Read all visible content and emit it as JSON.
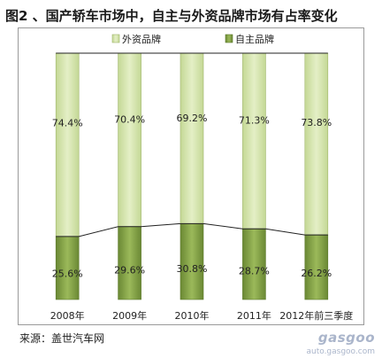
{
  "title": "图2 、国产轿车市场中，自主与外资品牌市场有占率变化",
  "source": "来源：盖世汽车网",
  "watermark": {
    "brand": "gasgoo",
    "url": "auto.gasgoo.com"
  },
  "chart_data": {
    "type": "bar",
    "stacked": true,
    "categories": [
      "2008年",
      "2009年",
      "2010年",
      "2011年",
      "2012年前三季度"
    ],
    "series": [
      {
        "name": "自主品牌",
        "values": [
          25.6,
          29.6,
          30.8,
          28.7,
          26.2
        ],
        "labels": [
          "25.6%",
          "29.6%",
          "30.8%",
          "28.7%",
          "26.2%"
        ],
        "color": "#7a9a3e"
      },
      {
        "name": "外资品牌",
        "values": [
          74.4,
          70.4,
          69.2,
          71.3,
          73.8
        ],
        "labels": [
          "74.4%",
          "70.4%",
          "69.2%",
          "71.3%",
          "73.8%"
        ],
        "color": "#d3e3a9"
      }
    ],
    "ylim": [
      0,
      100
    ],
    "legend_position": "top",
    "connector_lines": true,
    "grid": false
  }
}
